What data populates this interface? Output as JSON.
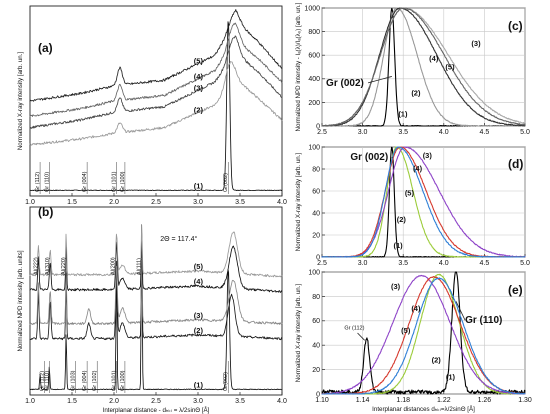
{
  "chart_data": [
    {
      "panel": "(a)",
      "type": "line",
      "xlabel": "",
      "ylabel": "Normalized X-ray intensity [arb. un.]",
      "xlim": [
        1.0,
        4.0
      ],
      "ylim": [
        0,
        1
      ],
      "x_ticks": [
        "1.0",
        "1.5",
        "2.0",
        "2.5",
        "3.0",
        "3.5",
        "4.0"
      ],
      "grid": false,
      "peak_labels": [
        {
          "x": 1.12,
          "text": "Gr (112)"
        },
        {
          "x": 1.23,
          "text": "Gr (110)"
        },
        {
          "x": 1.68,
          "text": "Gr (004)"
        },
        {
          "x": 2.03,
          "text": "Gr (101)"
        },
        {
          "x": 2.13,
          "text": "Gr (100)"
        },
        {
          "x": 3.36,
          "text": "Gr(002)"
        }
      ],
      "curve_labels": [
        "(1)",
        "(2)",
        "(3)",
        "(4)",
        "(5)"
      ],
      "series": [
        {
          "label": "(1)",
          "color": "#111111",
          "offset": 0.0,
          "base": [
            [
              1.0,
              0.03
            ],
            [
              4.0,
              0.03
            ]
          ],
          "peaks": [
            [
              3.36,
              0.9,
              0.018
            ]
          ]
        },
        {
          "label": "(2)",
          "color": "#9a9a9a",
          "offset": 0.05,
          "base": [
            [
              1.0,
              0.27
            ],
            [
              1.6,
              0.3
            ],
            [
              2.0,
              0.33
            ],
            [
              2.6,
              0.36
            ],
            [
              3.2,
              0.48
            ],
            [
              3.45,
              0.62
            ],
            [
              3.7,
              0.52
            ],
            [
              4.0,
              0.4
            ]
          ],
          "peaks": [
            [
              2.07,
              0.05,
              0.03
            ],
            [
              3.38,
              0.12,
              0.05
            ]
          ]
        },
        {
          "label": "(3)",
          "color": "#444444",
          "offset": 0.1,
          "base": [
            [
              1.0,
              0.36
            ],
            [
              1.6,
              0.4
            ],
            [
              2.0,
              0.44
            ],
            [
              2.6,
              0.47
            ],
            [
              3.2,
              0.6
            ],
            [
              3.45,
              0.75
            ],
            [
              3.7,
              0.66
            ],
            [
              4.0,
              0.52
            ]
          ],
          "peaks": [
            [
              2.07,
              0.07,
              0.03
            ],
            [
              3.42,
              0.1,
              0.06
            ]
          ]
        },
        {
          "label": "(4)",
          "color": "#666666",
          "offset": 0.15,
          "base": [
            [
              1.0,
              0.42
            ],
            [
              1.6,
              0.46
            ],
            [
              2.0,
              0.5
            ],
            [
              2.6,
              0.53
            ],
            [
              3.2,
              0.66
            ],
            [
              3.45,
              0.82
            ],
            [
              3.7,
              0.73
            ],
            [
              4.0,
              0.6
            ]
          ],
          "peaks": [
            [
              2.07,
              0.08,
              0.03
            ],
            [
              3.42,
              0.1,
              0.06
            ]
          ]
        },
        {
          "label": "(5)",
          "color": "#222222",
          "offset": 0.2,
          "base": [
            [
              1.0,
              0.5
            ],
            [
              1.6,
              0.54
            ],
            [
              2.0,
              0.58
            ],
            [
              2.6,
              0.61
            ],
            [
              3.2,
              0.74
            ],
            [
              3.45,
              0.92
            ],
            [
              3.7,
              0.82
            ],
            [
              4.0,
              0.67
            ]
          ],
          "peaks": [
            [
              2.07,
              0.09,
              0.03
            ],
            [
              3.43,
              0.06,
              0.06
            ]
          ]
        }
      ]
    },
    {
      "panel": "(b)",
      "type": "line",
      "xlabel": "Interplanar distance - dₕₖₗ = λ/2sinΘ  [Å]",
      "ylabel": "Normalized NPD intensity  [arb. units]",
      "xlim": [
        1.0,
        4.0
      ],
      "ylim": [
        0,
        1
      ],
      "x_ticks": [
        "1.0",
        "1.5",
        "2.0",
        "2.5",
        "3.0",
        "3.5",
        "4.0"
      ],
      "annotation": "2Θ = 117.4°",
      "grid": false,
      "peak_labels": [
        {
          "x": 1.17,
          "text": "Gr (112)"
        },
        {
          "x": 1.23,
          "text": "Gr (110)"
        },
        {
          "x": 1.54,
          "text": "Gr (103)"
        },
        {
          "x": 1.68,
          "text": "Gr (004)"
        },
        {
          "x": 1.8,
          "text": "Gr (102)"
        },
        {
          "x": 2.03,
          "text": "Gr (101)"
        },
        {
          "x": 2.13,
          "text": "Gr (100)"
        },
        {
          "x": 3.36,
          "text": "Gr(002)"
        }
      ],
      "top_labels": [
        {
          "x": 1.1,
          "text": "Al(222)"
        },
        {
          "x": 1.24,
          "text": "Al(310)"
        },
        {
          "x": 1.43,
          "text": "Al(220)"
        },
        {
          "x": 2.02,
          "text": "Al(200)"
        },
        {
          "x": 2.33,
          "text": "Al(111)"
        }
      ],
      "curve_labels": [
        "(1)",
        "(2)",
        "(3)",
        "(4)",
        "(5)"
      ],
      "series": [
        {
          "label": "(1)",
          "color": "#111111",
          "offset": 0.0,
          "base": [
            [
              1.0,
              0.03
            ],
            [
              4.0,
              0.03
            ]
          ],
          "peaks": [
            [
              1.12,
              0.08,
              0.006
            ],
            [
              1.23,
              0.12,
              0.006
            ],
            [
              1.43,
              0.3,
              0.006
            ],
            [
              2.03,
              0.7,
              0.006
            ],
            [
              2.33,
              0.9,
              0.006
            ],
            [
              3.36,
              0.65,
              0.015
            ]
          ]
        },
        {
          "label": "(2)",
          "color": "#1a1a1a",
          "offset": 0.05,
          "base": [
            [
              1.0,
              0.3
            ],
            [
              2.0,
              0.3
            ],
            [
              3.0,
              0.32
            ],
            [
              4.0,
              0.3
            ]
          ],
          "peaks": [
            [
              1.1,
              0.25,
              0.008
            ],
            [
              1.24,
              0.2,
              0.01
            ],
            [
              1.43,
              0.3,
              0.006
            ],
            [
              1.7,
              0.08,
              0.02
            ],
            [
              2.03,
              0.35,
              0.01
            ],
            [
              2.1,
              0.08,
              0.03
            ],
            [
              2.33,
              0.4,
              0.006
            ],
            [
              3.4,
              0.22,
              0.04
            ]
          ]
        },
        {
          "label": "(3)",
          "color": "#888888",
          "offset": 0.1,
          "base": [
            [
              1.0,
              0.38
            ],
            [
              2.0,
              0.38
            ],
            [
              3.0,
              0.4
            ],
            [
              4.0,
              0.38
            ]
          ],
          "peaks": [
            [
              1.1,
              0.22,
              0.008
            ],
            [
              1.24,
              0.18,
              0.01
            ],
            [
              1.43,
              0.28,
              0.006
            ],
            [
              1.7,
              0.08,
              0.02
            ],
            [
              2.03,
              0.3,
              0.01
            ],
            [
              2.1,
              0.08,
              0.03
            ],
            [
              2.33,
              0.35,
              0.006
            ],
            [
              3.42,
              0.22,
              0.05
            ]
          ]
        },
        {
          "label": "(4)",
          "color": "#111111",
          "offset": 0.15,
          "base": [
            [
              1.0,
              0.56
            ],
            [
              2.0,
              0.56
            ],
            [
              3.0,
              0.58
            ],
            [
              4.0,
              0.55
            ]
          ],
          "peaks": [
            [
              1.1,
              0.18,
              0.008
            ],
            [
              1.24,
              0.15,
              0.01
            ],
            [
              1.43,
              0.25,
              0.006
            ],
            [
              2.03,
              0.25,
              0.01
            ],
            [
              2.1,
              0.06,
              0.03
            ],
            [
              2.33,
              0.3,
              0.006
            ],
            [
              3.42,
              0.22,
              0.05
            ]
          ]
        },
        {
          "label": "(5)",
          "color": "#999999",
          "offset": 0.2,
          "base": [
            [
              1.0,
              0.64
            ],
            [
              2.0,
              0.64
            ],
            [
              3.0,
              0.66
            ],
            [
              4.0,
              0.63
            ]
          ],
          "peaks": [
            [
              1.1,
              0.16,
              0.008
            ],
            [
              1.24,
              0.13,
              0.01
            ],
            [
              1.43,
              0.22,
              0.006
            ],
            [
              2.03,
              0.22,
              0.01
            ],
            [
              2.1,
              0.05,
              0.03
            ],
            [
              2.33,
              0.26,
              0.006
            ],
            [
              3.42,
              0.22,
              0.05
            ]
          ]
        }
      ]
    },
    {
      "panel": "(c)",
      "type": "line",
      "xlabel": "",
      "ylabel": "Normalized NPD intensity - Iₐ(λ)/Iₐ(λ₀) [arb. un.]",
      "xlim": [
        2.5,
        5.0
      ],
      "ylim": [
        0,
        1000
      ],
      "x_ticks": [
        "2.5",
        "3.0",
        "3.5",
        "4.0",
        "4.5",
        "5.0"
      ],
      "y_ticks": [
        "0",
        "200",
        "400",
        "600",
        "800",
        "1000"
      ],
      "callout": "Gr (002)",
      "grid": true,
      "curve_labels": [
        "(1)",
        "(2)",
        "(3)",
        "(4)",
        "(5)"
      ],
      "series": [
        {
          "label": "(1)",
          "color": "#000000",
          "center": 3.36,
          "left_w": 0.035,
          "right_w": 0.035,
          "peak": 1000
        },
        {
          "label": "(2)",
          "color": "#9a9a9a",
          "center": 3.42,
          "left_w": 0.16,
          "right_w": 0.25,
          "peak": 1000
        },
        {
          "label": "(3)",
          "color": "#aaaaaa",
          "center": 3.5,
          "left_w": 0.28,
          "right_w": 0.55,
          "peak": 1000
        },
        {
          "label": "(4)",
          "color": "#333333",
          "center": 3.46,
          "left_w": 0.25,
          "right_w": 0.45,
          "peak": 1000
        },
        {
          "label": "(5)",
          "color": "#666666",
          "center": 3.5,
          "left_w": 0.28,
          "right_w": 0.5,
          "peak": 1000
        }
      ]
    },
    {
      "panel": "(d)",
      "type": "line",
      "xlabel": "",
      "ylabel": "Normalized X-ray intensity [arb. un.]",
      "xlim": [
        2.5,
        5.0
      ],
      "ylim": [
        0,
        100
      ],
      "x_ticks": [
        "2.5",
        "3.0",
        "3.5",
        "4.0",
        "4.5",
        "5.0"
      ],
      "y_ticks": [
        "0",
        "20",
        "40",
        "60",
        "80",
        "100"
      ],
      "callout": "Gr (002)",
      "grid": true,
      "curve_labels": [
        "(1)",
        "(2)",
        "(3)",
        "(4)",
        "(5)"
      ],
      "series": [
        {
          "label": "(1)",
          "color": "#000000",
          "center": 3.36,
          "left_w": 0.03,
          "right_w": 0.03,
          "peak": 100
        },
        {
          "label": "(2)",
          "color": "#9ccc3a",
          "center": 3.42,
          "left_w": 0.12,
          "right_w": 0.2,
          "peak": 100
        },
        {
          "label": "(3)",
          "color": "#8e44c8",
          "center": 3.52,
          "left_w": 0.2,
          "right_w": 0.42,
          "peak": 100
        },
        {
          "label": "(4)",
          "color": "#d63a2e",
          "center": 3.46,
          "left_w": 0.18,
          "right_w": 0.32,
          "peak": 100
        },
        {
          "label": "(5)",
          "color": "#2f7fd6",
          "center": 3.44,
          "left_w": 0.16,
          "right_w": 0.3,
          "peak": 100
        }
      ]
    },
    {
      "panel": "(e)",
      "type": "line",
      "xlabel": "Interplanar distances dₕₖₗ=λ/2sinΘ [Å]",
      "ylabel": "Normalized X-ray intensity [arb. un.]",
      "xlim": [
        1.1,
        1.3
      ],
      "ylim": [
        0,
        100
      ],
      "x_ticks": [
        "1.10",
        "1.14",
        "1.18",
        "1.22",
        "1.26",
        "1.30"
      ],
      "y_ticks": [
        "0",
        "20",
        "40",
        "60",
        "80",
        "100"
      ],
      "callout": "Gr (110)",
      "callout2": "Gr (112)",
      "grid": true,
      "curve_labels": [
        "(1)",
        "(2)",
        "(3)",
        "(4)",
        "(5)"
      ],
      "series": [
        {
          "label": "(1)",
          "color": "#000000",
          "center": 1.232,
          "left_w": 0.004,
          "right_w": 0.004,
          "peak": 100,
          "extra": [
            [
              1.144,
              44,
              0.003
            ]
          ]
        },
        {
          "label": "(2)",
          "color": "#9ccc3a",
          "center": 1.215,
          "left_w": 0.018,
          "right_w": 0.02,
          "peak": 98
        },
        {
          "label": "(3)",
          "color": "#8e44c8",
          "center": 1.198,
          "left_w": 0.028,
          "right_w": 0.028,
          "peak": 97
        },
        {
          "label": "(4)",
          "color": "#d63a2e",
          "center": 1.21,
          "left_w": 0.024,
          "right_w": 0.026,
          "peak": 96
        },
        {
          "label": "(5)",
          "color": "#2f7fd6",
          "center": 1.215,
          "left_w": 0.022,
          "right_w": 0.024,
          "peak": 95
        }
      ]
    }
  ]
}
